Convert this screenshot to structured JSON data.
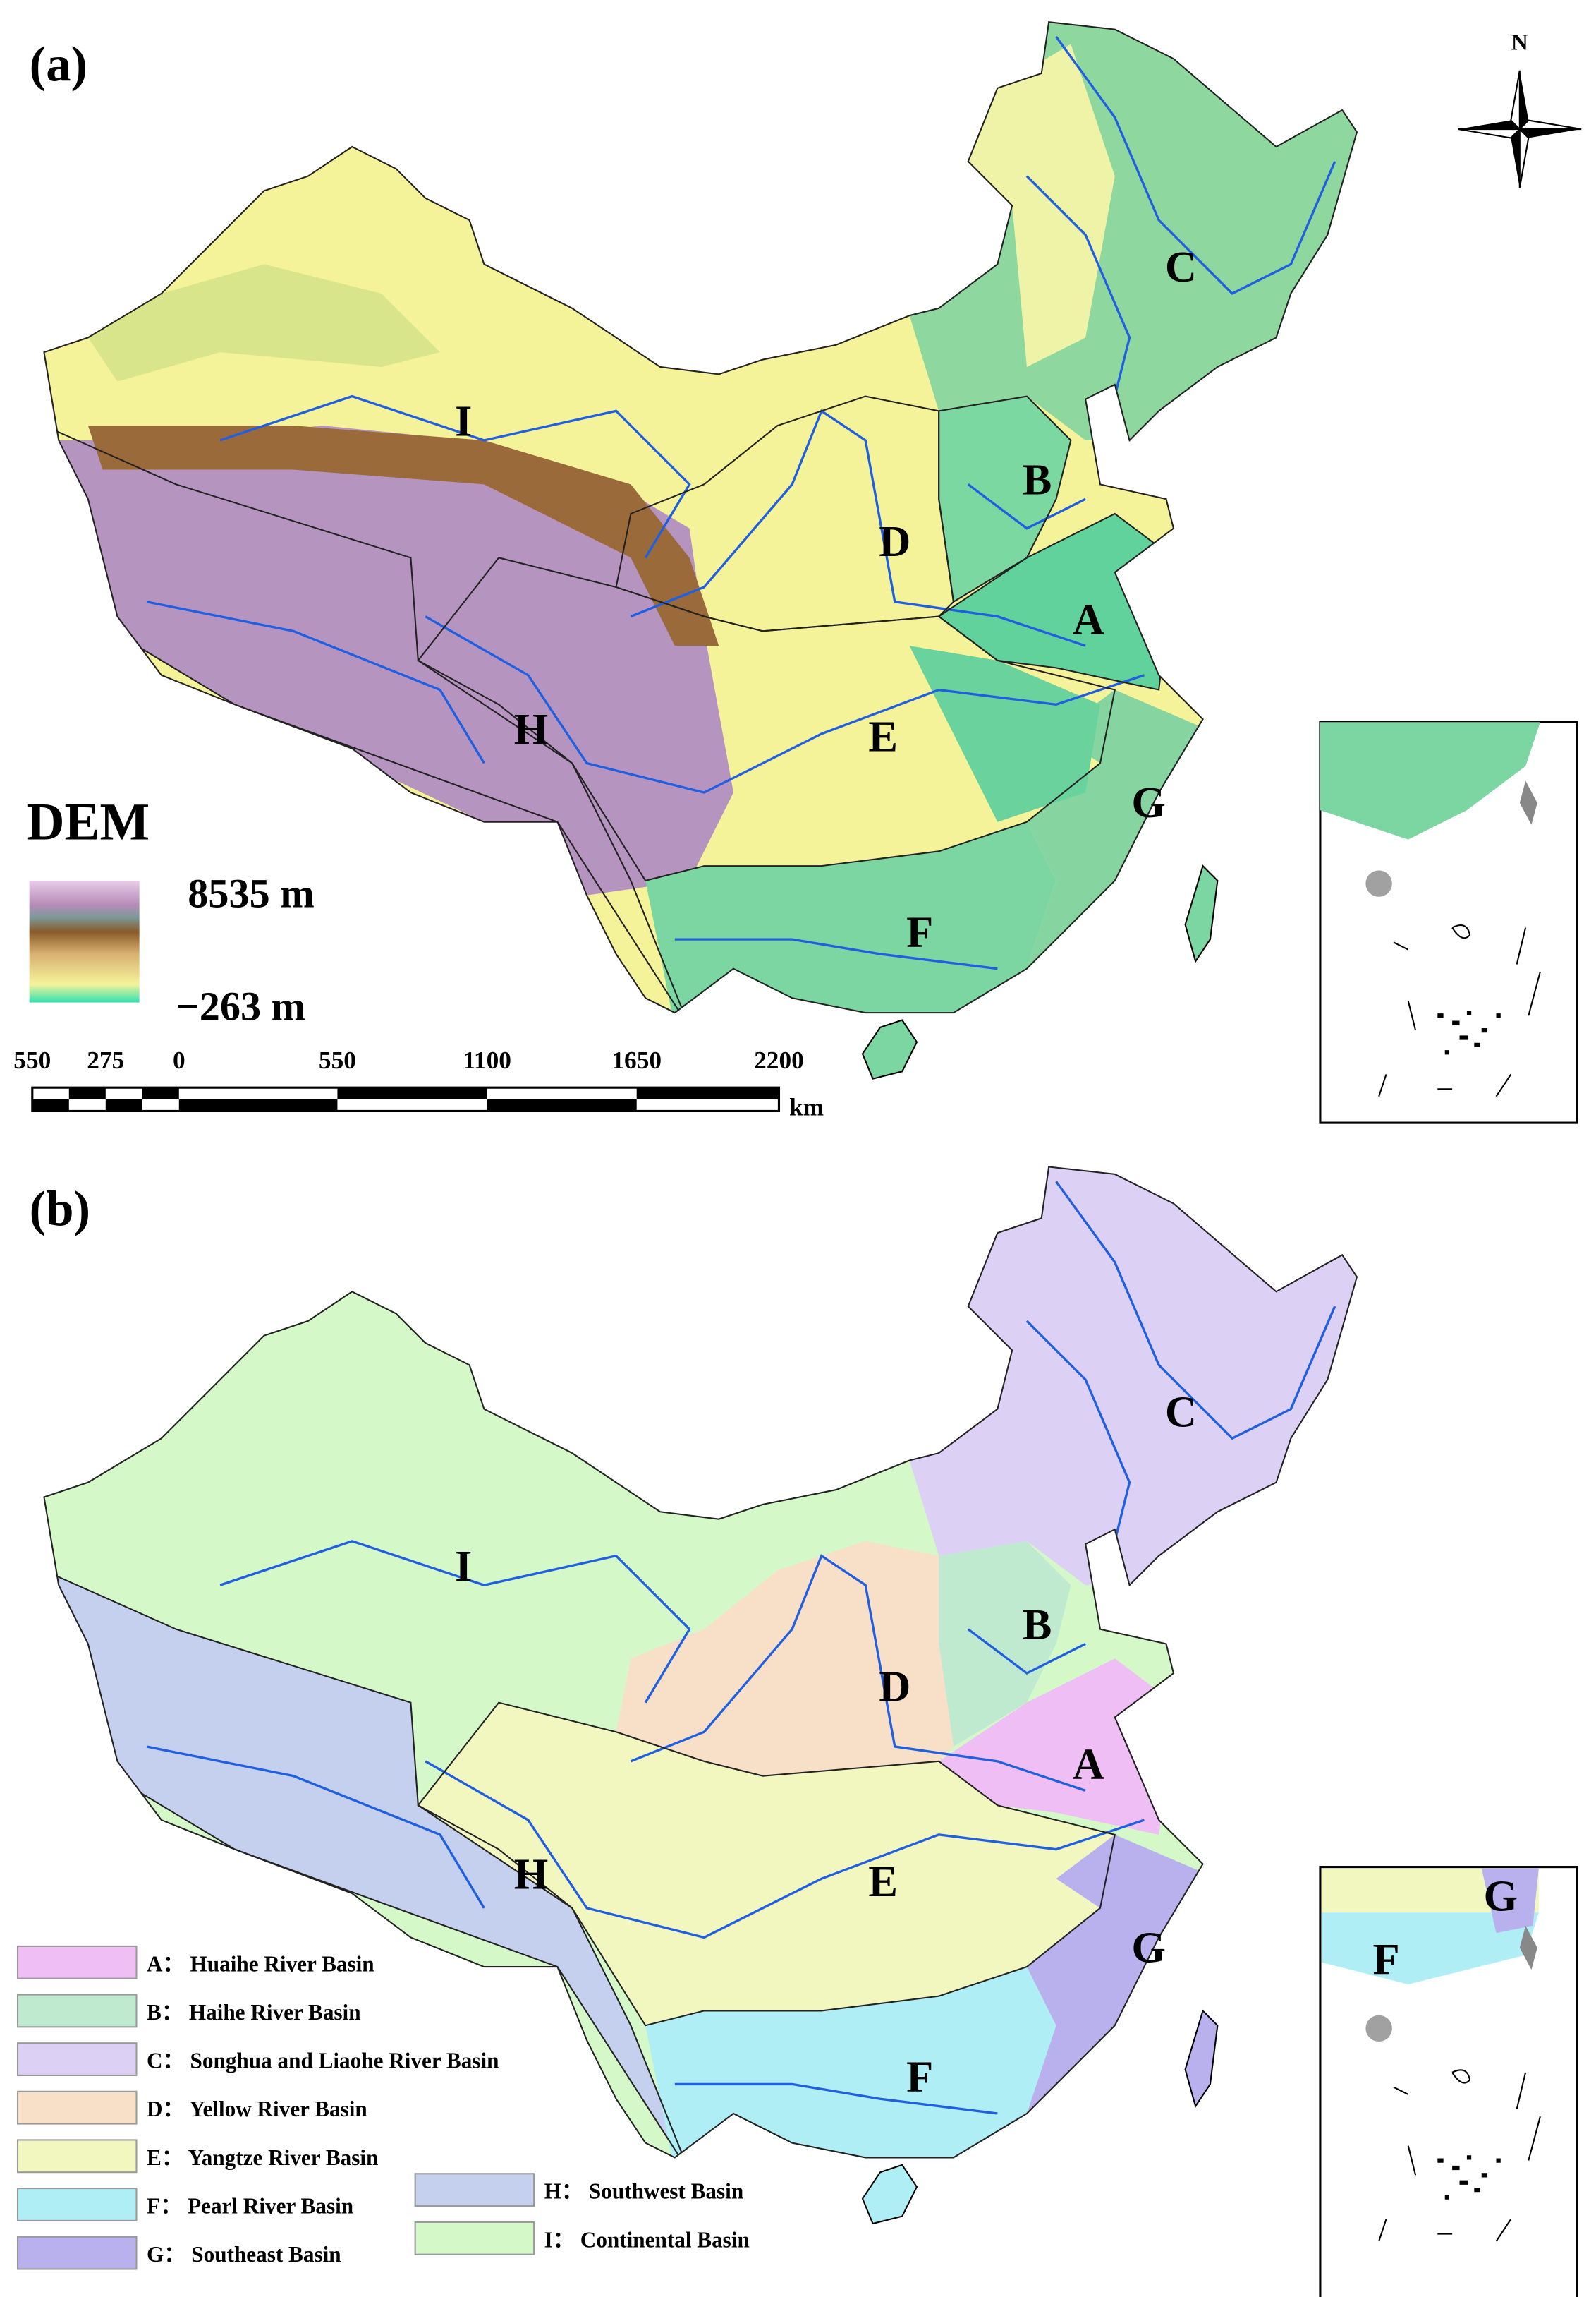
{
  "panels": [
    {
      "label": "(a)",
      "basin_letters": [
        "A",
        "B",
        "C",
        "D",
        "E",
        "F",
        "G",
        "H",
        "I"
      ],
      "dem_title": "DEM",
      "dem_max": "8535 m",
      "dem_min": "−263 m",
      "scale_labels": [
        "550",
        "275",
        "0",
        "550",
        "1100",
        "1650",
        "2200"
      ],
      "scale_unit": "km",
      "north": "N"
    },
    {
      "label": "(b)",
      "basin_letters": [
        "A",
        "B",
        "C",
        "D",
        "E",
        "F",
        "G",
        "H",
        "I"
      ],
      "inset_letters": [
        "G",
        "F"
      ],
      "legend": [
        "A： Huaihe River Basin",
        "B： Haihe River Basin",
        "C： Songhua and Liaohe River Basin",
        "D： Yellow River Basin",
        "E： Yangtze River Basin",
        "F： Pearl River Basin",
        "G： Southeast Basin",
        "H： Southwest Basin",
        "I： Continental Basin"
      ]
    }
  ]
}
